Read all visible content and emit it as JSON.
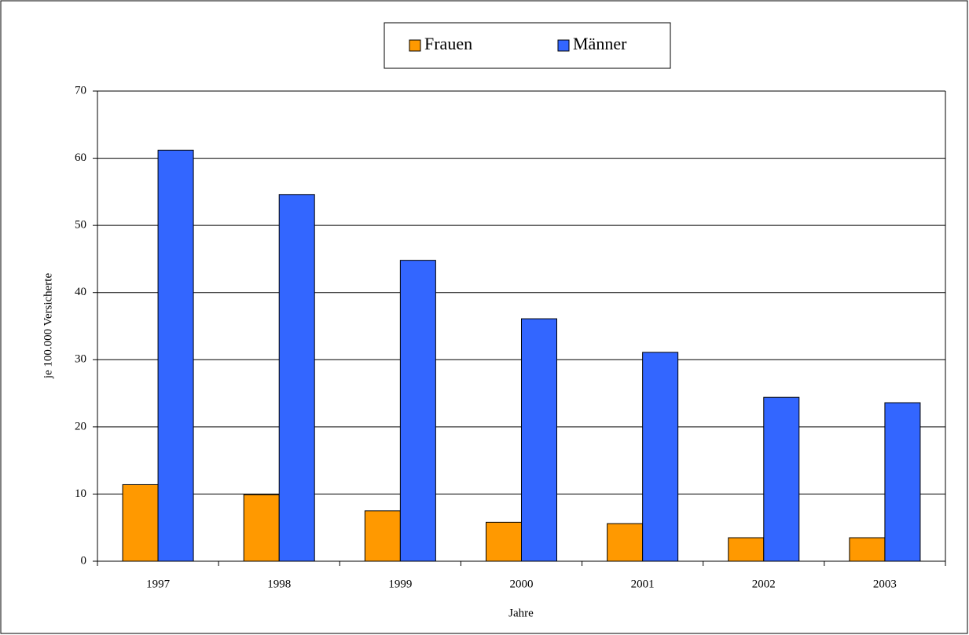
{
  "chart_data": {
    "type": "bar",
    "categories": [
      "1997",
      "1998",
      "1999",
      "2000",
      "2001",
      "2002",
      "2003"
    ],
    "series": [
      {
        "name": "Frauen",
        "color": "#ff9900",
        "values": [
          11.4,
          9.9,
          7.5,
          5.8,
          5.6,
          3.5,
          3.5
        ]
      },
      {
        "name": "Männer",
        "color": "#3366ff",
        "values": [
          61.2,
          54.6,
          44.8,
          36.1,
          31.1,
          24.4,
          23.6
        ]
      }
    ],
    "xlabel": "Jahre",
    "ylabel": "je 100.000 Versicherte",
    "ylim": [
      0,
      70
    ],
    "yticks": [
      0,
      10,
      20,
      30,
      40,
      50,
      60,
      70
    ],
    "grid": true,
    "legend": "top"
  }
}
